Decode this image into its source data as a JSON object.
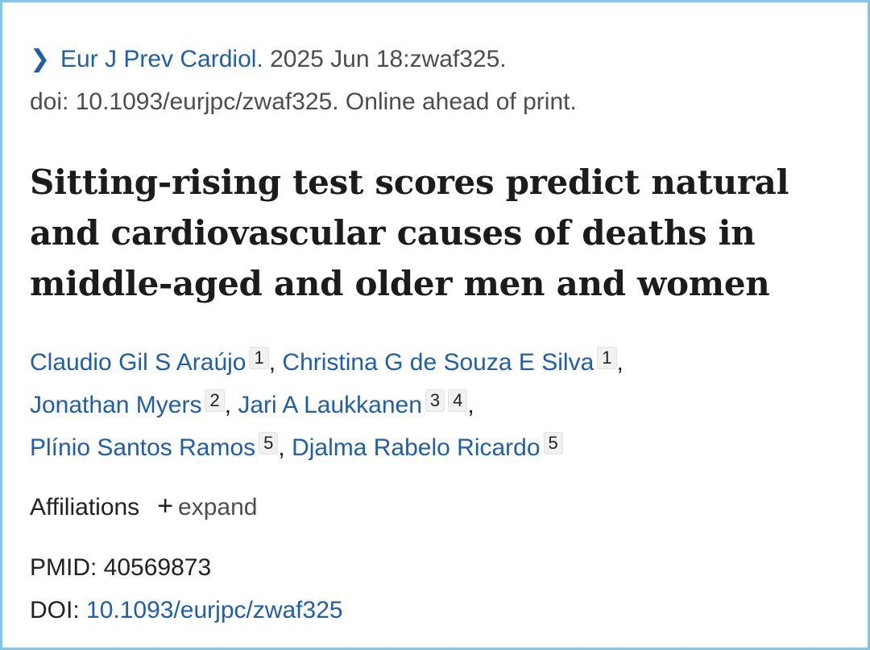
{
  "citation": {
    "journal": "Eur J Prev Cardiol.",
    "date_line": " 2025 Jun 18:zwaf325.",
    "doi_line": "doi: 10.1093/eurjpc/zwaf325. Online ahead of print."
  },
  "article": {
    "title": "Sitting-rising test scores predict natural and cardiovascular causes of deaths in middle-aged and older men and women"
  },
  "authors": [
    {
      "name": "Claudio Gil S Araújo",
      "affiliations": [
        "1"
      ]
    },
    {
      "name": "Christina G de Souza E Silva",
      "affiliations": [
        "1"
      ]
    },
    {
      "name": "Jonathan Myers",
      "affiliations": [
        "2"
      ]
    },
    {
      "name": "Jari A Laukkanen",
      "affiliations": [
        "3",
        "4"
      ]
    },
    {
      "name": "Plínio Santos Ramos",
      "affiliations": [
        "5"
      ]
    },
    {
      "name": "Djalma Rabelo Ricardo",
      "affiliations": [
        "5"
      ]
    }
  ],
  "affiliations_section": {
    "label": "Affiliations",
    "toggle_icon": "+",
    "toggle_label": "expand"
  },
  "identifiers": {
    "pmid_label": "PMID:",
    "pmid_value": " 40569873",
    "doi_label": "DOI:",
    "doi_value": "10.1093/eurjpc/zwaf325"
  },
  "icons": {
    "journal_chevron": "chevron-right-icon",
    "expand_toggle": "plus-icon"
  },
  "colors": {
    "link": "#1f5ea8",
    "border": "#7fc7ef",
    "title_text": "#1c1c1c"
  }
}
